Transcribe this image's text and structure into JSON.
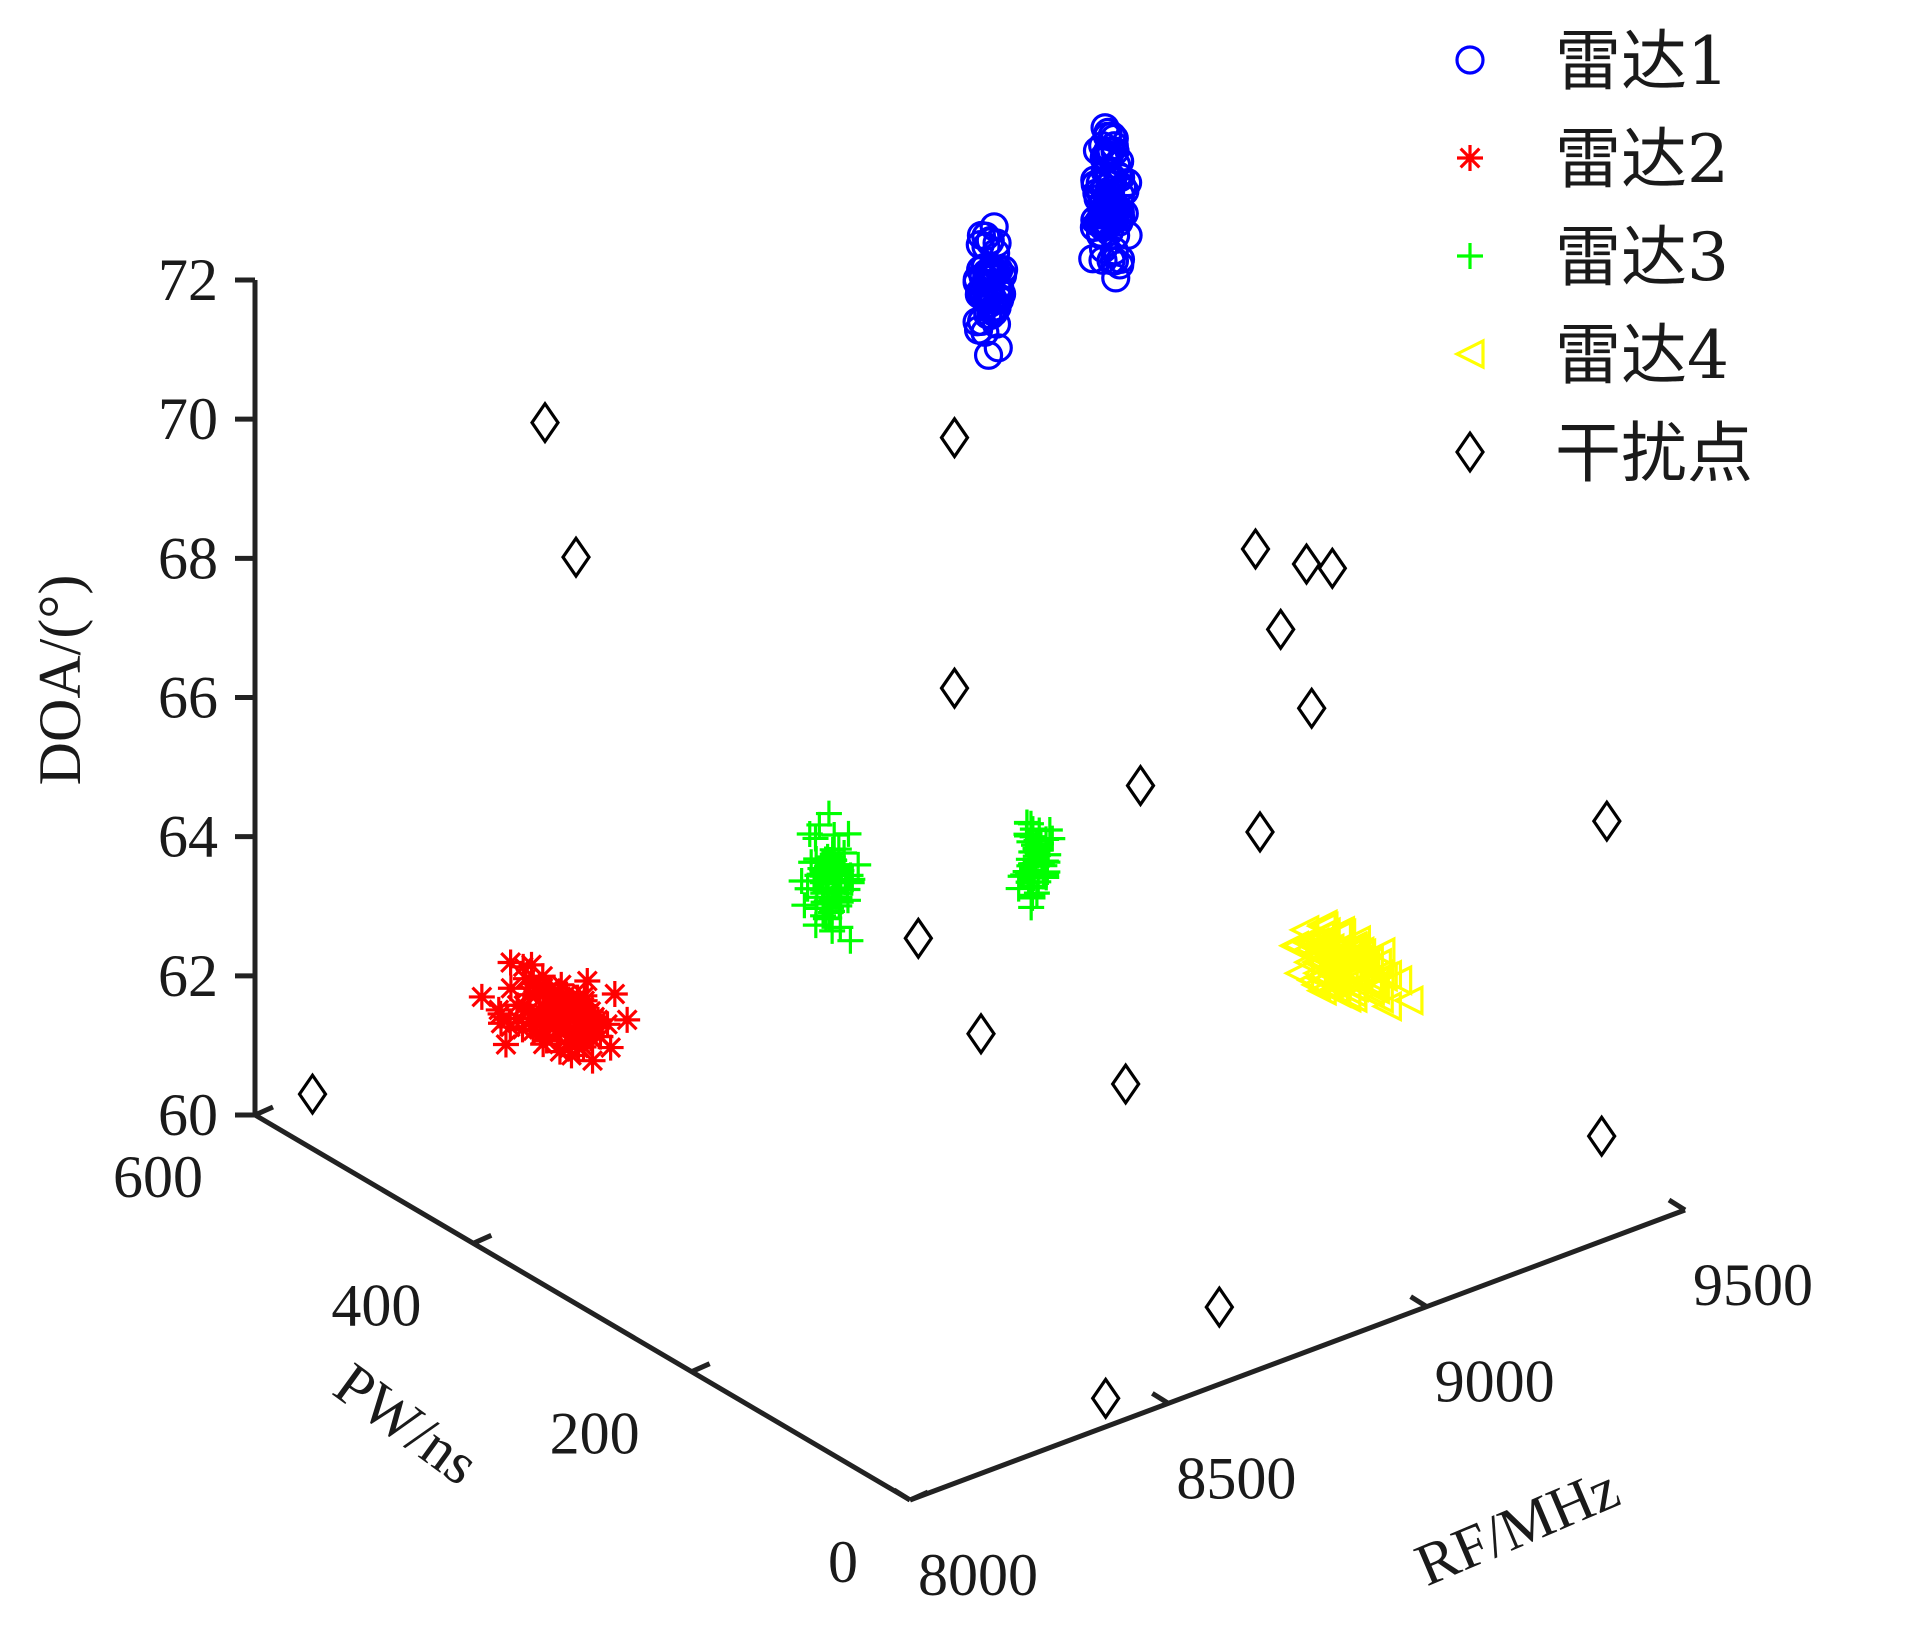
{
  "chart_data": {
    "type": "scatter3d",
    "title": "",
    "axes": {
      "x": {
        "label": "RF/MHz",
        "range": [
          8000,
          9500
        ],
        "ticks": [
          8000,
          8500,
          9000,
          9500
        ]
      },
      "y": {
        "label": "PW/ns",
        "range": [
          0,
          600
        ],
        "ticks": [
          0,
          200,
          400,
          600
        ]
      },
      "z": {
        "label": "DOA/(°)",
        "range": [
          60,
          72
        ],
        "ticks": [
          60,
          62,
          64,
          66,
          68,
          70,
          72
        ]
      }
    },
    "grid": false,
    "legend_position": "top-right",
    "series": [
      {
        "name": "雷达1",
        "marker": "circle",
        "color": "#0000ff",
        "clusters": [
          {
            "rf": 9000,
            "pw": 400,
            "doa": 71.0,
            "spread": [
              40,
              0,
              1.2
            ],
            "count": 60
          },
          {
            "rf": 9230,
            "pw": 400,
            "doa": 71.6,
            "spread": [
              45,
              0,
              1.4
            ],
            "count": 90
          }
        ]
      },
      {
        "name": "雷达2",
        "marker": "asterisk",
        "color": "#ff0000",
        "clusters": [
          {
            "rf": 8150,
            "pw": 390,
            "doa": 62.9,
            "spread": [
              90,
              60,
              0.7
            ],
            "count": 110
          }
        ]
      },
      {
        "name": "雷达3",
        "marker": "plus",
        "color": "#00ff00",
        "clusters": [
          {
            "rf": 8480,
            "pw": 300,
            "doa": 64.8,
            "spread": [
              35,
              25,
              1.0
            ],
            "count": 80
          },
          {
            "rf": 8880,
            "pw": 300,
            "doa": 64.0,
            "spread": [
              25,
              15,
              0.9
            ],
            "count": 60
          }
        ]
      },
      {
        "name": "雷达4",
        "marker": "triangle-left",
        "color": "#ffff00",
        "clusters": [
          {
            "rf": 9060,
            "pw": 100,
            "doa": 63.8,
            "spread": [
              70,
              55,
              0.6
            ],
            "count": 90
          }
        ]
      },
      {
        "name": "干扰点",
        "marker": "diamond",
        "color": "#000000",
        "points": [
          {
            "rf": 8350,
            "pw": 500,
            "doa": 69.9
          },
          {
            "rf": 8720,
            "pw": 300,
            "doa": 70.5
          },
          {
            "rf": 8880,
            "pw": 100,
            "doa": 70.3
          },
          {
            "rf": 8410,
            "pw": 500,
            "doa": 67.8
          },
          {
            "rf": 8720,
            "pw": 300,
            "doa": 66.9
          },
          {
            "rf": 9140,
            "pw": 200,
            "doa": 67.5
          },
          {
            "rf": 9190,
            "pw": 200,
            "doa": 68.3
          },
          {
            "rf": 9240,
            "pw": 200,
            "doa": 68.1
          },
          {
            "rf": 9200,
            "pw": 200,
            "doa": 66.2
          },
          {
            "rf": 9100,
            "pw": 200,
            "doa": 64.7
          },
          {
            "rf": 8650,
            "pw": 300,
            "doa": 63.5
          },
          {
            "rf": 8560,
            "pw": 200,
            "doa": 63.3
          },
          {
            "rf": 9560,
            "pw": 100,
            "doa": 64.5
          },
          {
            "rf": 7900,
            "pw": 500,
            "doa": 61.5
          },
          {
            "rf": 9550,
            "pw": 100,
            "doa": 60.0
          },
          {
            "rf": 8840,
            "pw": 200,
            "doa": 61.8
          },
          {
            "rf": 8810,
            "pw": 100,
            "doa": 59.6
          },
          {
            "rf": 8590,
            "pw": 100,
            "doa": 58.9
          },
          {
            "rf": 9080,
            "pw": 300,
            "doa": 64.5
          }
        ]
      }
    ]
  }
}
